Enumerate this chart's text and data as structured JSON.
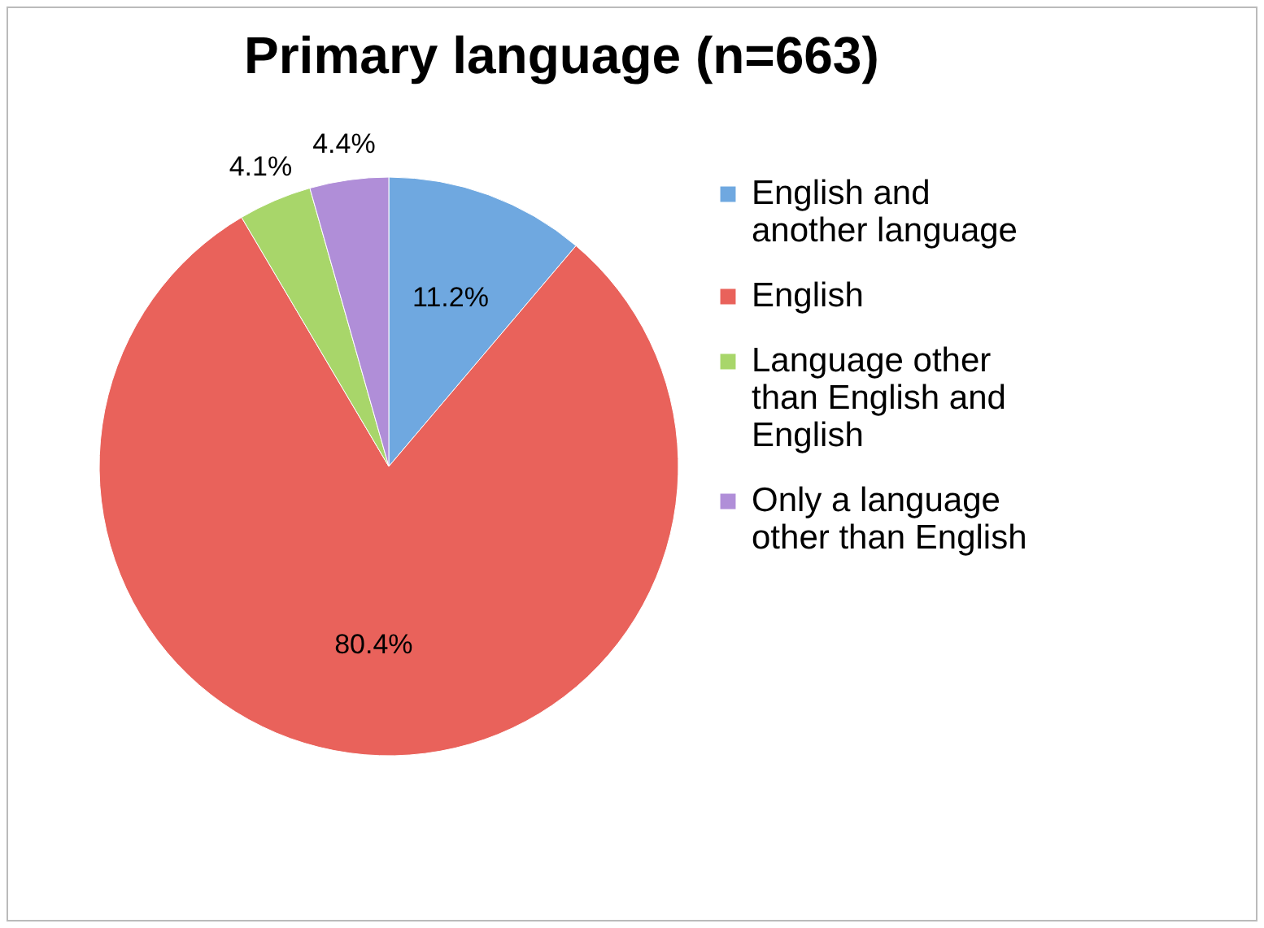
{
  "chart_data": {
    "type": "pie",
    "title": "Primary language (n=663)",
    "categories": [
      "English and another language",
      "English",
      "Language other than English and English",
      "Only a language other than English"
    ],
    "values": [
      11.2,
      80.4,
      4.1,
      4.4
    ],
    "colors": [
      "#6fa8e0",
      "#e9625b",
      "#a8d66a",
      "#b08ed8"
    ],
    "value_labels": [
      "11.2%",
      "80.4%",
      "4.1%",
      "4.4%"
    ],
    "legend": "right"
  }
}
